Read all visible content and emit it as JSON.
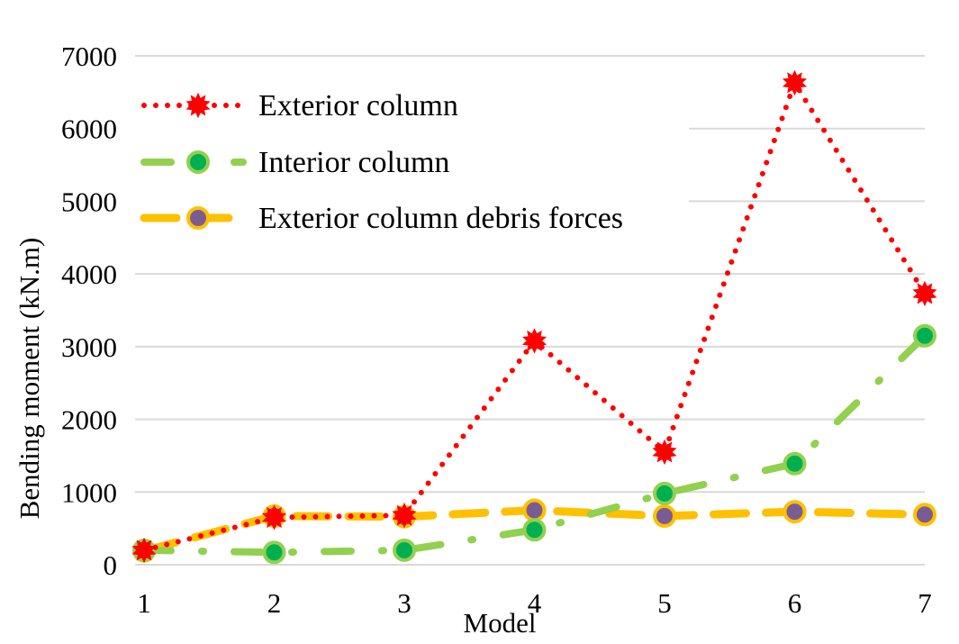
{
  "chart_data": {
    "type": "line",
    "title": "",
    "xlabel": "Model",
    "ylabel": "Bending moment (kN.m)",
    "x": [
      1,
      2,
      3,
      4,
      5,
      6,
      7
    ],
    "ylim": [
      0,
      7000
    ],
    "yticks": [
      0,
      1000,
      2000,
      3000,
      4000,
      5000,
      6000,
      7000
    ],
    "grid": "horizontal",
    "legend_position": "top-left",
    "series": [
      {
        "name": "Exterior column",
        "values": [
          200,
          650,
          680,
          3080,
          1550,
          6630,
          3730
        ],
        "line_color": "#ff0000",
        "marker_color": "#ff0000",
        "line_style": "dotted",
        "marker": "star"
      },
      {
        "name": "Interior column",
        "values": [
          200,
          170,
          200,
          480,
          980,
          1390,
          3150
        ],
        "line_color": "#92d050",
        "marker_color": "#00b050",
        "line_style": "dash-dot",
        "marker": "circle"
      },
      {
        "name": "Exterior column debris forces",
        "values": [
          190,
          670,
          660,
          750,
          670,
          730,
          690
        ],
        "line_color": "#ffc000",
        "marker_color": "#7a5c94",
        "line_style": "long-dash",
        "marker": "circle"
      }
    ]
  }
}
